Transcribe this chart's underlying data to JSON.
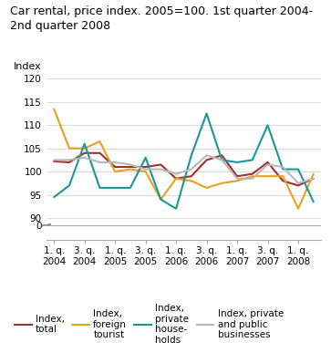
{
  "title": "Car rental, price index. 2005=100. 1st quarter 2004-\n2nd quarter 2008",
  "ylabel": "Index",
  "x_labels": [
    "1. q.\n2004",
    "3. q.\n2004",
    "1. q.\n2005",
    "3. q.\n2005",
    "1. q.\n2006",
    "3. q.\n2006",
    "1. q.\n2007",
    "3. q.\n2007",
    "1. q.\n2008"
  ],
  "tick_positions": [
    0,
    2,
    4,
    6,
    8,
    10,
    12,
    14,
    16
  ],
  "series": {
    "index_total": {
      "label": "Index,\ntotal",
      "color": "#A0302A",
      "linewidth": 1.5,
      "values": [
        102.2,
        102.0,
        104.0,
        104.0,
        101.0,
        101.0,
        101.0,
        101.5,
        98.5,
        99.0,
        102.5,
        103.5,
        99.0,
        99.5,
        102.0,
        98.0,
        97.0,
        98.5
      ]
    },
    "index_foreign_tourist": {
      "label": "Index,\nforeign\ntourist",
      "color": "#E8A020",
      "linewidth": 1.5,
      "values": [
        113.5,
        105.0,
        105.0,
        106.5,
        100.0,
        100.5,
        100.0,
        94.0,
        98.5,
        98.0,
        96.5,
        97.5,
        98.0,
        99.0,
        99.0,
        99.0,
        92.0,
        99.5
      ]
    },
    "index_private_households": {
      "label": "Index,\nprivate\nhouse-\nholds",
      "color": "#1A9696",
      "linewidth": 1.5,
      "values": [
        94.5,
        97.0,
        106.0,
        96.5,
        96.5,
        96.5,
        103.0,
        94.0,
        92.0,
        103.5,
        112.5,
        102.5,
        102.0,
        102.5,
        110.0,
        100.5,
        100.5,
        93.5
      ]
    },
    "index_private_public_businesses": {
      "label": "Index, private\nand public\nbusinesses",
      "color": "#B8B8B8",
      "linewidth": 1.5,
      "values": [
        102.5,
        102.5,
        103.0,
        102.0,
        102.0,
        101.5,
        100.5,
        100.5,
        99.5,
        100.5,
        103.5,
        102.5,
        98.5,
        98.5,
        101.5,
        101.0,
        97.5,
        98.5
      ]
    }
  },
  "background_color": "#ffffff",
  "grid_color": "#cccccc",
  "title_fontsize": 9,
  "axis_label_fontsize": 8,
  "tick_fontsize": 7.5,
  "legend_fontsize": 7.5
}
